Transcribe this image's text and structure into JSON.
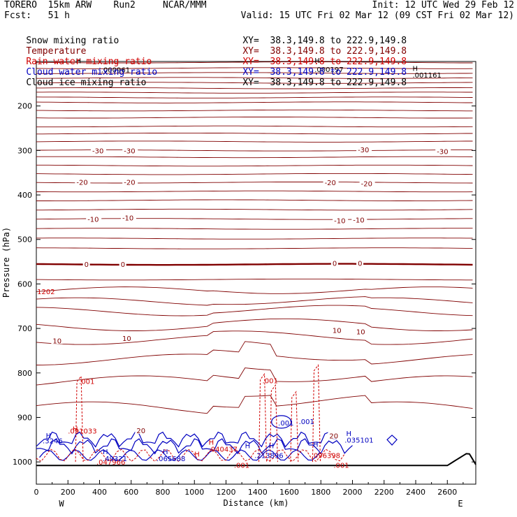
{
  "header": {
    "left1": "TORERO  15km ARW    Run2     NCAR/MMM",
    "left2": "Fcst:   51 h",
    "right1": "Init: 12 UTC Wed 29 Feb 12",
    "right2": "Valid: 15 UTC Fri 02 Mar 12 (09 CST Fri 02 Mar 12)"
  },
  "legend": [
    {
      "name": "Snow mixing ratio",
      "xy": "XY=  38.3,149.8 to 222.9,149.8",
      "color": "#000000"
    },
    {
      "name": "Temperature",
      "xy": "XY=  38.3,149.8 to 222.9,149.8",
      "color": "#800000"
    },
    {
      "name": "Rain water mixing ratio",
      "xy": "XY=  38.3,149.8 to 222.9,149.8",
      "color": "#d00000"
    },
    {
      "name": "Cloud water mixing ratio",
      "xy": "XY=  38.3,149.8 to 222.9,149.8",
      "color": "#0000c0"
    },
    {
      "name": "Cloud ice mixing ratio",
      "xy": "XY=  38.3,149.8 to 222.9,149.8",
      "color": "#000000"
    }
  ],
  "chart_data": {
    "type": "line",
    "xlabel": "Distance (km)",
    "ylabel": "Pressure (hPa)",
    "xlim": [
      0,
      2780
    ],
    "ylim": [
      1050,
      100
    ],
    "xticks": [
      0,
      200,
      400,
      600,
      800,
      1000,
      1200,
      1400,
      1600,
      1800,
      2000,
      2200,
      2400,
      2600
    ],
    "yticks": [
      200,
      300,
      400,
      500,
      600,
      700,
      800,
      900,
      1000
    ],
    "x_end_labels": {
      "left": "W",
      "right": "E"
    },
    "colors": {
      "temperature": "#800000",
      "rain": "#d00000",
      "cloud_water": "#0000c0",
      "ground": "#000000"
    },
    "temperature_isotherms": [
      {
        "label": "-30",
        "pressure": 300
      },
      {
        "label": "-20",
        "pressure": 372
      },
      {
        "label": "-10",
        "pressure": 454
      },
      {
        "label": "0",
        "pressure": 556
      },
      {
        "label": "10",
        "pressure": 695
      },
      {
        "label": "20",
        "pressure": 930
      }
    ],
    "temperature_labels": [
      {
        "text": "-30",
        "x": 380,
        "p": 300
      },
      {
        "text": "-30",
        "x": 580,
        "p": 300
      },
      {
        "text": "-30",
        "x": 2060,
        "p": 298
      },
      {
        "text": "-30",
        "x": 2560,
        "p": 302
      },
      {
        "text": "-20",
        "x": 280,
        "p": 371
      },
      {
        "text": "-20",
        "x": 580,
        "p": 371
      },
      {
        "text": "-20",
        "x": 1850,
        "p": 372
      },
      {
        "text": "-20",
        "x": 2080,
        "p": 374
      },
      {
        "text": "-10",
        "x": 350,
        "p": 454
      },
      {
        "text": "-10",
        "x": 570,
        "p": 451
      },
      {
        "text": "-10",
        "x": 1910,
        "p": 457
      },
      {
        "text": "-10",
        "x": 2030,
        "p": 456
      },
      {
        "text": "0",
        "x": 330,
        "p": 555
      },
      {
        "text": "0",
        "x": 560,
        "p": 555
      },
      {
        "text": "0",
        "x": 1900,
        "p": 553
      },
      {
        "text": "0",
        "x": 2060,
        "p": 553
      },
      {
        "text": "10",
        "x": 130,
        "p": 727
      },
      {
        "text": "10",
        "x": 570,
        "p": 722
      },
      {
        "text": "10",
        "x": 1900,
        "p": 704
      },
      {
        "text": "10",
        "x": 2050,
        "p": 707
      },
      {
        "text": "20",
        "x": 660,
        "p": 929
      },
      {
        "text": "20",
        "x": 1880,
        "p": 941
      }
    ],
    "rain_labels": [
      {
        "text": ".001",
        "x": 270,
        "p": 818
      },
      {
        "text": ".001",
        "x": 1430,
        "p": 817
      },
      {
        "text": ".001",
        "x": 1880,
        "p": 1007
      },
      {
        "text": ".001",
        "x": 1250,
        "p": 1007
      },
      {
        "text": ".091033",
        "x": 200,
        "p": 930
      },
      {
        "text": ".040437",
        "x": 1090,
        "p": 971
      },
      {
        "text": ".096398",
        "x": 1740,
        "p": 985
      },
      {
        "text": ".047966",
        "x": 380,
        "p": 1000
      },
      {
        "text": "1202",
        "x": 5,
        "p": 617
      }
    ],
    "cloud_labels": [
      {
        "text": ".001",
        "x": 1530,
        "p": 912
      },
      {
        "text": ".035101",
        "x": 1950,
        "p": 950
      },
      {
        "text": ".213896",
        "x": 1380,
        "p": 985
      },
      {
        "text": ".065688",
        "x": 760,
        "p": 992
      },
      {
        "text": ".49321",
        "x": 420,
        "p": 992
      },
      {
        "text": ".3246",
        "x": 40,
        "p": 952
      },
      {
        "text": ".001",
        "x": 1660,
        "p": 909
      }
    ],
    "black_labels": [
      {
        "text": ".000961",
        "x": 410,
        "p": 118
      },
      {
        "text": ".000197",
        "x": 1760,
        "p": 117
      },
      {
        "text": ".001161",
        "x": 2380,
        "p": 130
      }
    ],
    "h_markers": [
      {
        "x": 250,
        "p": 98,
        "color": "#000000"
      },
      {
        "x": 1760,
        "p": 97,
        "color": "#000000"
      },
      {
        "x": 2380,
        "p": 115,
        "color": "#000000"
      },
      {
        "x": 60,
        "p": 940,
        "color": "#0000c0"
      },
      {
        "x": 230,
        "p": 925,
        "color": "#d00000"
      },
      {
        "x": 420,
        "p": 976,
        "color": "#0000c0"
      },
      {
        "x": 800,
        "p": 976,
        "color": "#0000c0"
      },
      {
        "x": 1000,
        "p": 982,
        "color": "#d00000"
      },
      {
        "x": 1090,
        "p": 955,
        "color": "#d00000"
      },
      {
        "x": 1320,
        "p": 963,
        "color": "#0000c0"
      },
      {
        "x": 1470,
        "p": 963,
        "color": "#0000c0"
      },
      {
        "x": 1750,
        "p": 960,
        "color": "#0000c0"
      },
      {
        "x": 1960,
        "p": 935,
        "color": "#0000c0"
      }
    ]
  }
}
